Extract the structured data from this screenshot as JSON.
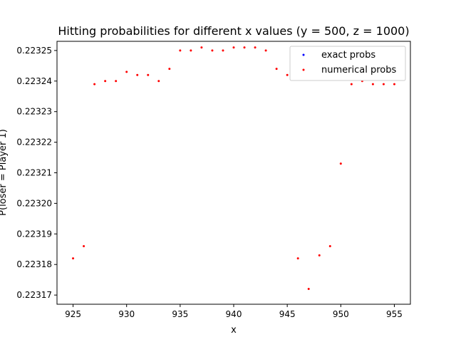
{
  "chart_data": {
    "type": "scatter",
    "title": "Hitting probabilities for different x values (y = 500, z = 1000)",
    "xlabel": "x",
    "ylabel": "P(loser = Player 1)",
    "xlim": [
      923.5,
      956.5
    ],
    "ylim": [
      0.223167,
      0.223253
    ],
    "xticks": [
      925,
      930,
      935,
      940,
      945,
      950,
      955
    ],
    "xtick_labels": [
      "925",
      "930",
      "935",
      "940",
      "945",
      "950",
      "955"
    ],
    "yticks": [
      0.22317,
      0.22318,
      0.22319,
      0.2232,
      0.22321,
      0.22322,
      0.22323,
      0.22324,
      0.22325
    ],
    "ytick_labels": [
      "0.22317",
      "0.22318",
      "0.22319",
      "0.22320",
      "0.22321",
      "0.22322",
      "0.22323",
      "0.22324",
      "0.22325"
    ],
    "grid": false,
    "legend_position": "upper right",
    "legend": [
      {
        "label": "exact probs",
        "color": "#0000ff"
      },
      {
        "label": "numerical probs",
        "color": "#ff0000"
      }
    ],
    "series": [
      {
        "name": "numerical probs",
        "color": "#ff0000",
        "x": [
          925,
          926,
          927,
          928,
          929,
          930,
          931,
          932,
          933,
          934,
          935,
          936,
          937,
          938,
          939,
          940,
          941,
          942,
          943,
          944,
          945,
          946,
          947,
          948,
          949,
          950,
          951,
          952,
          953,
          954,
          955
        ],
        "y": [
          0.223182,
          0.223186,
          0.223239,
          0.22324,
          0.22324,
          0.223243,
          0.223242,
          0.223242,
          0.22324,
          0.223244,
          0.22325,
          0.22325,
          0.223251,
          0.22325,
          0.22325,
          0.223251,
          0.223251,
          0.223251,
          0.22325,
          0.223244,
          0.223242,
          0.223182,
          0.223172,
          0.223183,
          0.223186,
          0.223213,
          0.223239,
          0.22324,
          0.223239,
          0.223239,
          0.223239
        ]
      }
    ]
  }
}
